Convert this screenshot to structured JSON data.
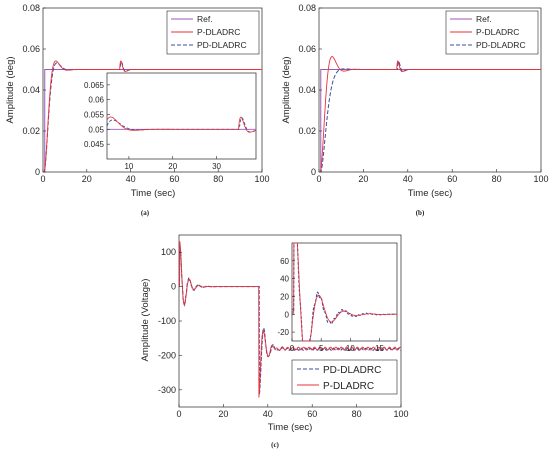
{
  "colors": {
    "ref": "#9b59b6",
    "p": "#e8323c",
    "pd": "#3b4f9a",
    "axis": "#262626"
  },
  "chart_data": [
    {
      "id": "a",
      "caption": "(a)",
      "type": "line",
      "xlabel": "Time (sec)",
      "ylabel": "Amplitude (deg)",
      "xlim": [
        0,
        100
      ],
      "ylim": [
        0,
        0.08
      ],
      "xticks": [
        "0",
        "20",
        "40",
        "60",
        "80",
        "100"
      ],
      "yticks": [
        "0",
        "0.02",
        "0.04",
        "0.06",
        "0.08"
      ],
      "legend": [
        "Ref.",
        "P-DLADRC",
        "PD-DLADRC"
      ],
      "inset": {
        "xlim": [
          5,
          39
        ],
        "ylim": [
          0.04,
          0.069
        ],
        "xticks": [
          "10",
          "20",
          "30"
        ],
        "yticks": [
          "0.045",
          "0.05",
          "0.055",
          "0.06",
          "0.065"
        ]
      }
    },
    {
      "id": "b",
      "caption": "(b)",
      "type": "line",
      "xlabel": "Time (sec)",
      "ylabel": "Amplitude (deg)",
      "xlim": [
        0,
        100
      ],
      "ylim": [
        0,
        0.08
      ],
      "xticks": [
        "0",
        "20",
        "40",
        "60",
        "80",
        "100"
      ],
      "yticks": [
        "0",
        "0.02",
        "0.04",
        "0.06",
        "0.08"
      ],
      "legend": [
        "Ref.",
        "P-DLADRC",
        "PD-DLADRC"
      ]
    },
    {
      "id": "c",
      "caption": "(c)",
      "type": "line",
      "xlabel": "Time (sec)",
      "ylabel": "Amplitude (Voltage)",
      "xlim": [
        0,
        100
      ],
      "ylim": [
        -350,
        150
      ],
      "xticks": [
        "0",
        "20",
        "40",
        "60",
        "80",
        "100"
      ],
      "yticks": [
        "100",
        "0",
        "-100",
        "-200",
        "-300"
      ],
      "legend": [
        "PD-DLADRC",
        "P-DLADRC"
      ],
      "inset": {
        "xlim": [
          0,
          18
        ],
        "ylim": [
          -30,
          80
        ],
        "xticks": [
          "0",
          "5",
          "10",
          "15"
        ],
        "yticks": [
          "60",
          "40",
          "20",
          "0",
          "-20"
        ]
      }
    }
  ]
}
